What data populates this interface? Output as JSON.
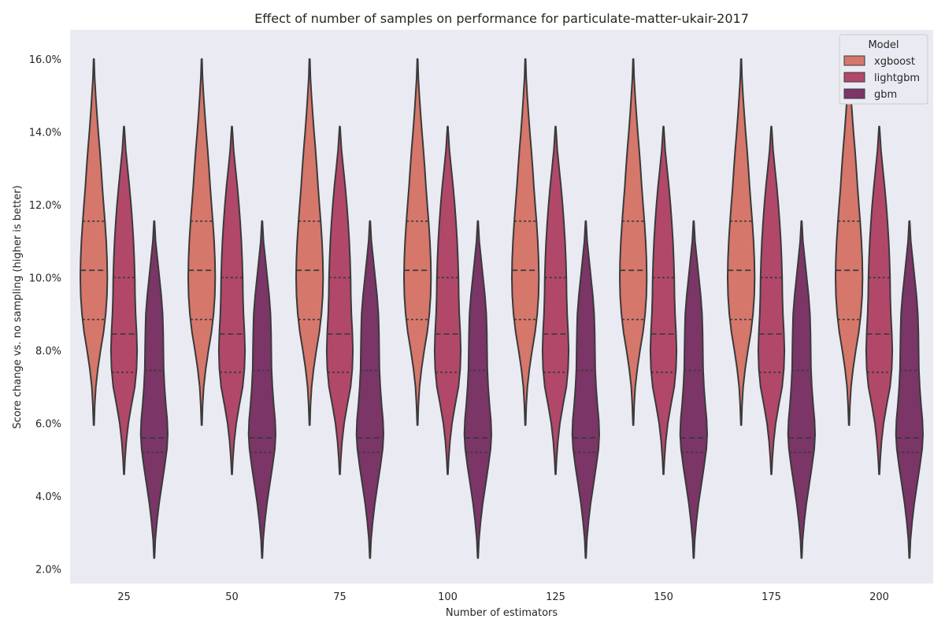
{
  "chart_data": {
    "type": "violin",
    "title": "Effect of number of samples on performance for particulate-matter-ukair-2017",
    "xlabel": "Number of estimators",
    "ylabel": "Score change vs. no sampling (higher is better)",
    "categories": [
      "25",
      "50",
      "75",
      "100",
      "125",
      "150",
      "175",
      "200"
    ],
    "ylim": [
      1.6,
      16.8
    ],
    "yticks": [
      2,
      4,
      6,
      8,
      10,
      12,
      14,
      16
    ],
    "ytick_labels": [
      "2.0%",
      "4.0%",
      "6.0%",
      "8.0%",
      "10.0%",
      "12.0%",
      "14.0%",
      "16.0%"
    ],
    "legend": {
      "title": "Model",
      "position": "top-right",
      "entries": [
        "xgboost",
        "lightgbm",
        "gbm"
      ]
    },
    "inner": "quartile",
    "series": [
      {
        "name": "xgboost",
        "color": "#d5776b",
        "min": 5.95,
        "max": 16.0,
        "q1": 8.85,
        "median": 10.2,
        "q3": 11.55,
        "density": [
          [
            5.95,
            0.02
          ],
          [
            6.5,
            0.07
          ],
          [
            7.0,
            0.15
          ],
          [
            7.5,
            0.3
          ],
          [
            8.0,
            0.5
          ],
          [
            8.5,
            0.72
          ],
          [
            9.0,
            0.88
          ],
          [
            9.5,
            0.97
          ],
          [
            10.0,
            1.0
          ],
          [
            10.5,
            0.98
          ],
          [
            11.0,
            0.92
          ],
          [
            11.5,
            0.83
          ],
          [
            12.0,
            0.73
          ],
          [
            12.5,
            0.63
          ],
          [
            13.0,
            0.54
          ],
          [
            13.5,
            0.44
          ],
          [
            14.0,
            0.33
          ],
          [
            14.5,
            0.23
          ],
          [
            15.0,
            0.14
          ],
          [
            15.5,
            0.06
          ],
          [
            16.0,
            0.02
          ]
        ]
      },
      {
        "name": "lightgbm",
        "color": "#b1486a",
        "min": 4.6,
        "max": 14.15,
        "q1": 7.4,
        "median": 8.45,
        "q3": 10.0,
        "density": [
          [
            4.6,
            0.02
          ],
          [
            5.0,
            0.07
          ],
          [
            5.5,
            0.17
          ],
          [
            6.0,
            0.32
          ],
          [
            6.5,
            0.55
          ],
          [
            7.0,
            0.8
          ],
          [
            7.5,
            0.93
          ],
          [
            8.0,
            0.97
          ],
          [
            8.5,
            0.93
          ],
          [
            9.0,
            0.86
          ],
          [
            9.5,
            0.82
          ],
          [
            10.0,
            0.8
          ],
          [
            10.5,
            0.76
          ],
          [
            11.0,
            0.7
          ],
          [
            11.5,
            0.62
          ],
          [
            12.0,
            0.52
          ],
          [
            12.5,
            0.4
          ],
          [
            13.0,
            0.26
          ],
          [
            13.5,
            0.13
          ],
          [
            14.15,
            0.02
          ]
        ]
      },
      {
        "name": "gbm",
        "color": "#7b3567",
        "min": 2.3,
        "max": 11.55,
        "q1": 5.2,
        "median": 5.6,
        "q3": 7.45,
        "density": [
          [
            2.3,
            0.02
          ],
          [
            2.8,
            0.08
          ],
          [
            3.3,
            0.2
          ],
          [
            3.8,
            0.36
          ],
          [
            4.3,
            0.56
          ],
          [
            4.8,
            0.76
          ],
          [
            5.3,
            0.94
          ],
          [
            5.7,
            1.0
          ],
          [
            6.1,
            0.96
          ],
          [
            6.5,
            0.86
          ],
          [
            7.0,
            0.76
          ],
          [
            7.5,
            0.7
          ],
          [
            8.0,
            0.68
          ],
          [
            8.5,
            0.66
          ],
          [
            9.0,
            0.62
          ],
          [
            9.5,
            0.52
          ],
          [
            10.0,
            0.38
          ],
          [
            10.5,
            0.24
          ],
          [
            11.0,
            0.1
          ],
          [
            11.55,
            0.02
          ]
        ]
      }
    ]
  },
  "colors": {
    "plot_background": "#eaeaf2",
    "outline": "#3a3a3a"
  }
}
